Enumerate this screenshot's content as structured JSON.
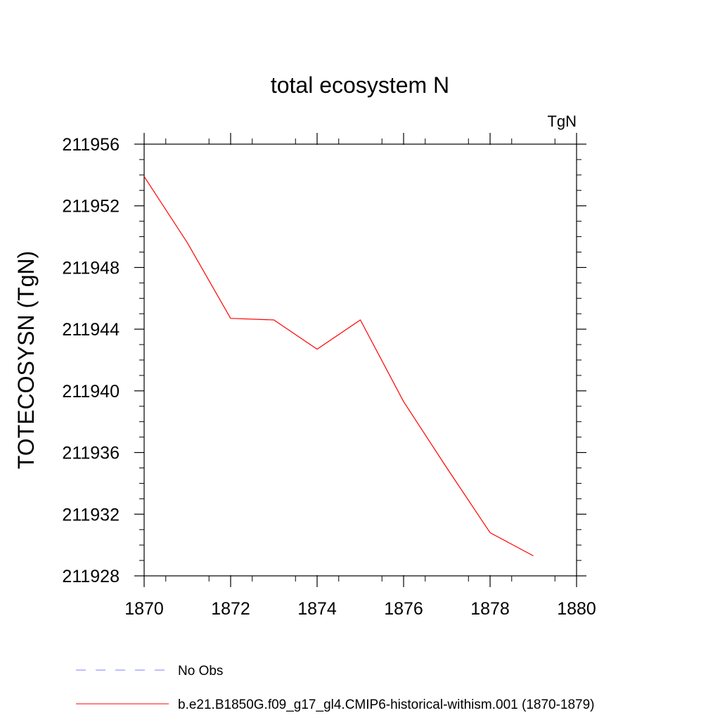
{
  "chart_data": {
    "type": "line",
    "title": "total ecosystem N",
    "units_label": "TgN",
    "xlabel": "",
    "ylabel": "TOTECOSYSN  (TgN)",
    "xlim": [
      1870,
      1880
    ],
    "ylim": [
      211928,
      211956
    ],
    "xticks": [
      1870,
      1872,
      1874,
      1876,
      1878,
      1880
    ],
    "yticks": [
      211928,
      211932,
      211936,
      211940,
      211944,
      211948,
      211952,
      211956
    ],
    "grid": false,
    "legend_position": "bottom-left",
    "series": [
      {
        "name": "b.e21.B1850G.f09_g17_gl4.CMIP6-historical-withism.001 (1870-1879)",
        "color": "#ff0000",
        "style": "solid",
        "x": [
          1870,
          1871,
          1872,
          1873,
          1874,
          1875,
          1876,
          1877,
          1878,
          1879
        ],
        "y": [
          211953.9,
          211949.6,
          211944.7,
          211944.6,
          211942.7,
          211944.6,
          211939.3,
          211935.0,
          211930.8,
          211929.3
        ]
      }
    ],
    "legend": [
      {
        "label": "No Obs",
        "color": "#7f7fff",
        "style": "dashed"
      },
      {
        "label": "b.e21.B1850G.f09_g17_gl4.CMIP6-historical-withism.001 (1870-1879)",
        "color": "#ff0000",
        "style": "solid"
      }
    ]
  }
}
